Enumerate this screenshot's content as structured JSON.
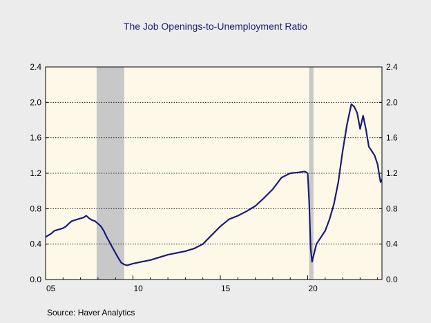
{
  "chart_data": {
    "type": "line",
    "title": "The  Job Openings-to-Unemployment Ratio",
    "xlabel": "",
    "ylabel": "",
    "xlim": [
      2005.0,
      2024.25
    ],
    "ylim": [
      0.0,
      2.4
    ],
    "y_ticks": [
      "0.0",
      "0.4",
      "0.8",
      "1.2",
      "1.6",
      "2.0",
      "2.4"
    ],
    "y_tick_values": [
      0.0,
      0.4,
      0.8,
      1.2,
      1.6,
      2.0,
      2.4
    ],
    "x_ticks": [
      "05",
      "10",
      "15",
      "20"
    ],
    "x_tick_values": [
      2005,
      2010,
      2015,
      2020
    ],
    "grid": "horizontal dotted",
    "line_color": "#1a1a7a",
    "recession_color": "#c8c8c8",
    "plot_background": "#fdf8e8",
    "recessions": [
      [
        2007.92,
        2009.5
      ],
      [
        2020.08,
        2020.33
      ]
    ],
    "series": [
      {
        "points": [
          [
            2005.0,
            0.48
          ],
          [
            2005.17,
            0.5
          ],
          [
            2005.33,
            0.52
          ],
          [
            2005.5,
            0.55
          ],
          [
            2005.67,
            0.56
          ],
          [
            2005.83,
            0.57
          ],
          [
            2006.0,
            0.58
          ],
          [
            2006.17,
            0.6
          ],
          [
            2006.33,
            0.63
          ],
          [
            2006.5,
            0.66
          ],
          [
            2006.67,
            0.67
          ],
          [
            2006.83,
            0.68
          ],
          [
            2007.0,
            0.69
          ],
          [
            2007.17,
            0.7
          ],
          [
            2007.33,
            0.72
          ],
          [
            2007.5,
            0.69
          ],
          [
            2007.67,
            0.67
          ],
          [
            2007.83,
            0.66
          ],
          [
            2008.0,
            0.63
          ],
          [
            2008.17,
            0.6
          ],
          [
            2008.33,
            0.55
          ],
          [
            2008.5,
            0.48
          ],
          [
            2008.67,
            0.42
          ],
          [
            2008.83,
            0.36
          ],
          [
            2009.0,
            0.3
          ],
          [
            2009.17,
            0.24
          ],
          [
            2009.33,
            0.19
          ],
          [
            2009.5,
            0.17
          ],
          [
            2009.67,
            0.16
          ],
          [
            2009.83,
            0.17
          ],
          [
            2010.0,
            0.18
          ],
          [
            2010.5,
            0.2
          ],
          [
            2011.0,
            0.22
          ],
          [
            2011.5,
            0.25
          ],
          [
            2012.0,
            0.28
          ],
          [
            2012.5,
            0.3
          ],
          [
            2013.0,
            0.32
          ],
          [
            2013.5,
            0.35
          ],
          [
            2014.0,
            0.4
          ],
          [
            2014.5,
            0.5
          ],
          [
            2015.0,
            0.6
          ],
          [
            2015.5,
            0.68
          ],
          [
            2016.0,
            0.72
          ],
          [
            2016.5,
            0.77
          ],
          [
            2017.0,
            0.83
          ],
          [
            2017.5,
            0.92
          ],
          [
            2018.0,
            1.02
          ],
          [
            2018.5,
            1.15
          ],
          [
            2019.0,
            1.2
          ],
          [
            2019.5,
            1.21
          ],
          [
            2019.83,
            1.22
          ],
          [
            2020.0,
            1.2
          ],
          [
            2020.08,
            0.9
          ],
          [
            2020.17,
            0.35
          ],
          [
            2020.25,
            0.2
          ],
          [
            2020.5,
            0.4
          ],
          [
            2021.0,
            0.55
          ],
          [
            2021.25,
            0.68
          ],
          [
            2021.5,
            0.85
          ],
          [
            2021.75,
            1.1
          ],
          [
            2022.0,
            1.45
          ],
          [
            2022.25,
            1.75
          ],
          [
            2022.5,
            1.98
          ],
          [
            2022.67,
            1.95
          ],
          [
            2022.83,
            1.88
          ],
          [
            2023.0,
            1.7
          ],
          [
            2023.17,
            1.85
          ],
          [
            2023.33,
            1.7
          ],
          [
            2023.5,
            1.5
          ],
          [
            2023.67,
            1.45
          ],
          [
            2023.83,
            1.4
          ],
          [
            2024.0,
            1.3
          ],
          [
            2024.08,
            1.2
          ],
          [
            2024.17,
            1.1
          ],
          [
            2024.25,
            1.13
          ]
        ]
      }
    ]
  },
  "footer": {
    "source": "Source:  Haver Analytics"
  }
}
